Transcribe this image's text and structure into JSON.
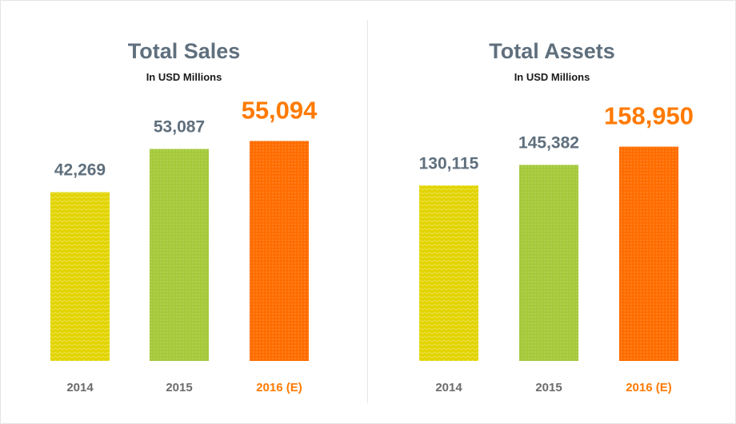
{
  "chart_data": [
    {
      "type": "bar",
      "title": "Total Sales",
      "subtitle": "In USD Millions",
      "categories": [
        "2014",
        "2015",
        "2016 (E)"
      ],
      "values": [
        42269,
        53087,
        55094
      ],
      "value_labels": [
        "42,269",
        "53,087",
        "55,094"
      ],
      "colors": [
        "#e2d400",
        "#a5c93a",
        "#ff6d00"
      ],
      "highlight_index": 2,
      "ylim": [
        0,
        60000
      ],
      "grid": false,
      "legend": "none"
    },
    {
      "type": "bar",
      "title": "Total Assets",
      "subtitle": "In USD Millions",
      "categories": [
        "2014",
        "2015",
        "2016 (E)"
      ],
      "values": [
        130115,
        145382,
        158950
      ],
      "value_labels": [
        "130,115",
        "145,382",
        "158,950"
      ],
      "colors": [
        "#e2d400",
        "#a5c93a",
        "#ff6d00"
      ],
      "highlight_index": 2,
      "ylim": [
        0,
        177700
      ],
      "grid": false,
      "legend": "none"
    }
  ]
}
